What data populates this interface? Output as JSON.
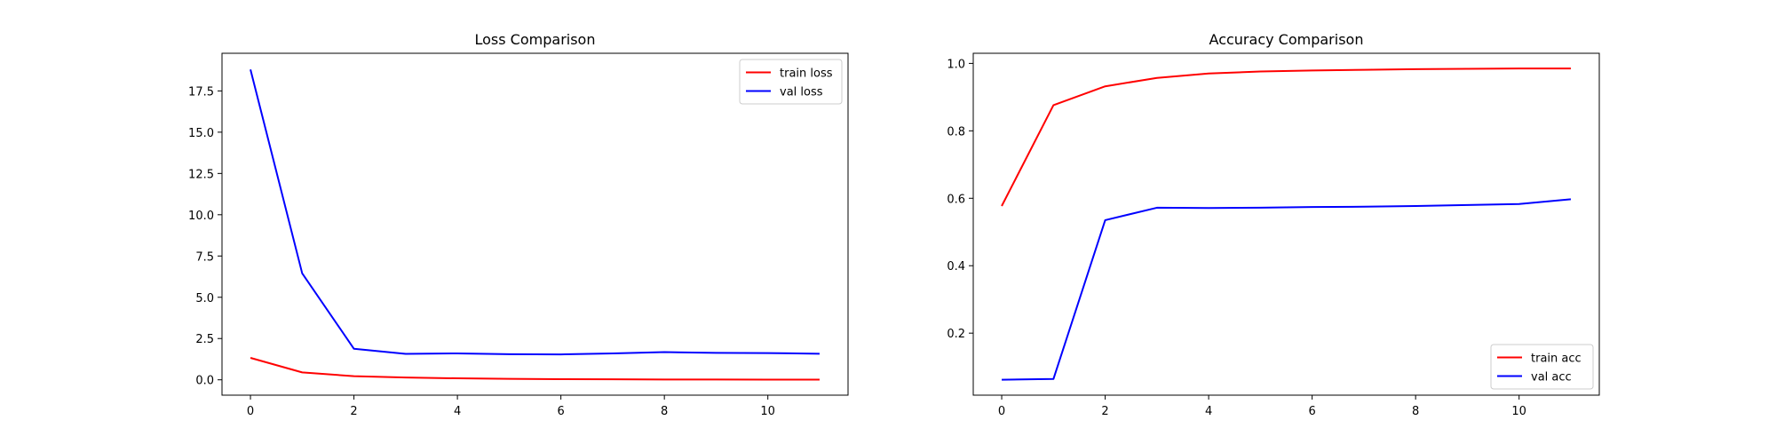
{
  "chart_data": [
    {
      "type": "line",
      "title": "Loss Comparison",
      "xlabel": "",
      "ylabel": "",
      "xlim": [
        -0.55,
        11.55
      ],
      "ylim": [
        -0.93,
        19.78
      ],
      "xticks": [
        0,
        2,
        4,
        6,
        8,
        10
      ],
      "yticks": [
        0.0,
        2.5,
        5.0,
        7.5,
        10.0,
        12.5,
        15.0,
        17.5
      ],
      "ytick_labels": [
        "0.0",
        "2.5",
        "5.0",
        "7.5",
        "10.0",
        "12.5",
        "15.0",
        "17.5"
      ],
      "xtick_labels": [
        "0",
        "2",
        "4",
        "6",
        "8",
        "10"
      ],
      "grid": false,
      "legend_position": "upper right",
      "x": [
        0,
        1,
        2,
        3,
        4,
        5,
        6,
        7,
        8,
        9,
        10,
        11
      ],
      "series": [
        {
          "name": "train loss",
          "color": "#ff0000",
          "values": [
            1.33,
            0.45,
            0.22,
            0.14,
            0.09,
            0.06,
            0.04,
            0.03,
            0.02,
            0.015,
            0.01,
            0.01
          ]
        },
        {
          "name": "val loss",
          "color": "#0000ff",
          "values": [
            18.8,
            6.45,
            1.88,
            1.57,
            1.6,
            1.55,
            1.54,
            1.6,
            1.68,
            1.63,
            1.62,
            1.58
          ]
        }
      ]
    },
    {
      "type": "line",
      "title": "Accuracy Comparison",
      "xlabel": "",
      "ylabel": "",
      "xlim": [
        -0.55,
        11.55
      ],
      "ylim": [
        0.0161,
        1.03
      ],
      "xticks": [
        0,
        2,
        4,
        6,
        8,
        10
      ],
      "yticks": [
        0.2,
        0.4,
        0.6,
        0.8,
        1.0
      ],
      "ytick_labels": [
        "0.2",
        "0.4",
        "0.6",
        "0.8",
        "1.0"
      ],
      "xtick_labels": [
        "0",
        "2",
        "4",
        "6",
        "8",
        "10"
      ],
      "grid": false,
      "legend_position": "lower right",
      "x": [
        0,
        1,
        2,
        3,
        4,
        5,
        6,
        7,
        8,
        9,
        10,
        11
      ],
      "series": [
        {
          "name": "train acc",
          "color": "#ff0000",
          "values": [
            0.577,
            0.876,
            0.932,
            0.957,
            0.97,
            0.976,
            0.979,
            0.981,
            0.983,
            0.984,
            0.985,
            0.985
          ]
        },
        {
          "name": "val acc",
          "color": "#0000ff",
          "values": [
            0.062,
            0.064,
            0.535,
            0.572,
            0.571,
            0.572,
            0.574,
            0.575,
            0.577,
            0.58,
            0.583,
            0.597
          ]
        }
      ]
    }
  ]
}
